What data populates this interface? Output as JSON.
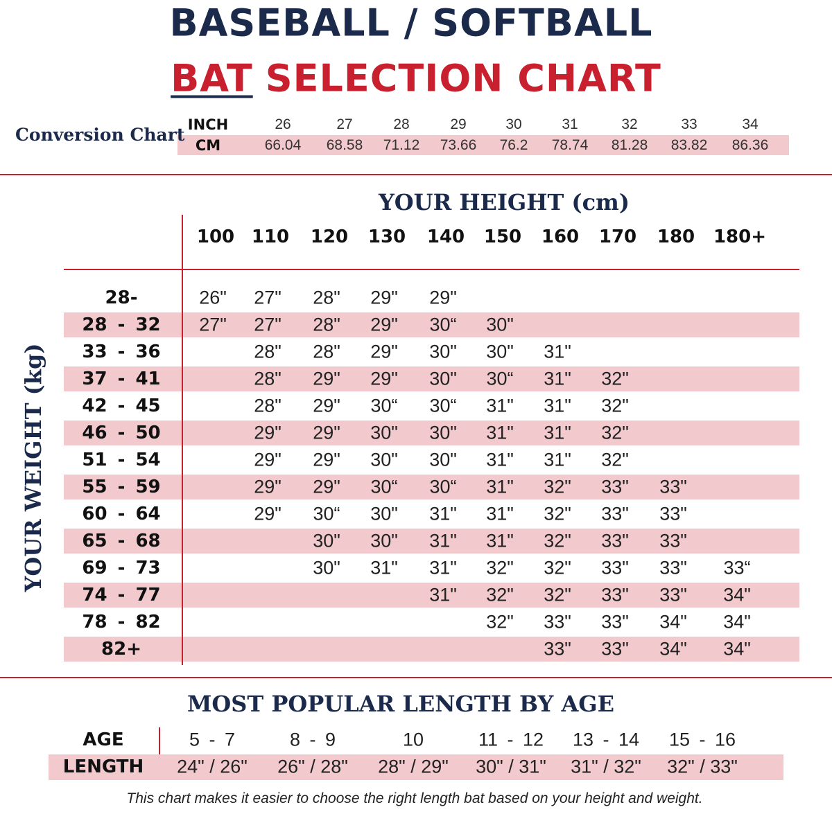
{
  "header": {
    "title_line1": "BASEBALL / SOFTBALL",
    "title_line2_underlined": "BAT",
    "title_line2_rest": "SELECTION CHART"
  },
  "conversion": {
    "title": "Conversion Chart",
    "inch_label": "INCH",
    "cm_label": "CM",
    "inch": [
      26,
      27,
      28,
      29,
      30,
      31,
      32,
      33,
      34
    ],
    "cm": [
      66.04,
      68.58,
      71.12,
      73.66,
      76.2,
      78.74,
      81.28,
      83.82,
      86.36
    ]
  },
  "table": {
    "height_title": "YOUR HEIGHT (cm)",
    "weight_title": "YOUR WEIGHT (kg)",
    "columns": [
      "100",
      "110",
      "120",
      "130",
      "140",
      "150",
      "160",
      "170",
      "180",
      "180+"
    ],
    "rows": [
      {
        "weight": "28-",
        "cells": [
          "26\"",
          "27\"",
          "28\"",
          "29\"",
          "29\"",
          null,
          null,
          null,
          null,
          null
        ]
      },
      {
        "weight": "28 - 32",
        "cells": [
          "27\"",
          "27\"",
          "28\"",
          "29\"",
          "30“",
          "30\"",
          null,
          null,
          null,
          null
        ]
      },
      {
        "weight": "33 - 36",
        "cells": [
          null,
          "28\"",
          "28\"",
          "29\"",
          "30\"",
          "30\"",
          "31\"",
          null,
          null,
          null
        ]
      },
      {
        "weight": "37 - 41",
        "cells": [
          null,
          "28\"",
          "29\"",
          "29\"",
          "30\"",
          "30“",
          "31\"",
          "32\"",
          null,
          null
        ]
      },
      {
        "weight": "42 - 45",
        "cells": [
          null,
          "28\"",
          "29\"",
          "30“",
          "30“",
          "31\"",
          "31\"",
          "32\"",
          null,
          null
        ]
      },
      {
        "weight": "46 - 50",
        "cells": [
          null,
          "29\"",
          "29\"",
          "30\"",
          "30\"",
          "31\"",
          "31\"",
          "32\"",
          null,
          null
        ]
      },
      {
        "weight": "51 - 54",
        "cells": [
          null,
          "29\"",
          "29\"",
          "30\"",
          "30\"",
          "31\"",
          "31\"",
          "32\"",
          null,
          null
        ]
      },
      {
        "weight": "55 - 59",
        "cells": [
          null,
          "29\"",
          "29\"",
          "30“",
          "30“",
          "31\"",
          "32\"",
          "33\"",
          "33\"",
          null
        ]
      },
      {
        "weight": "60 - 64",
        "cells": [
          null,
          "29\"",
          "30“",
          "30\"",
          "31\"",
          "31\"",
          "32\"",
          "33\"",
          "33\"",
          null
        ]
      },
      {
        "weight": "65 - 68",
        "cells": [
          null,
          null,
          "30\"",
          "30\"",
          "31\"",
          "31\"",
          "32\"",
          "33\"",
          "33\"",
          null
        ]
      },
      {
        "weight": "69 - 73",
        "cells": [
          null,
          null,
          "30\"",
          "31\"",
          "31\"",
          "32\"",
          "32\"",
          "33\"",
          "33\"",
          "33“"
        ]
      },
      {
        "weight": "74 - 77",
        "cells": [
          null,
          null,
          null,
          null,
          "31\"",
          "32\"",
          "32\"",
          "33\"",
          "33\"",
          "34\""
        ]
      },
      {
        "weight": "78 - 82",
        "cells": [
          null,
          null,
          null,
          null,
          null,
          "32\"",
          "33\"",
          "33\"",
          "34\"",
          "34\""
        ]
      },
      {
        "weight": "82+",
        "cells": [
          null,
          null,
          null,
          null,
          null,
          null,
          "33\"",
          "33\"",
          "34\"",
          "34\""
        ]
      }
    ]
  },
  "age_table": {
    "title": "MOST POPULAR LENGTH BY AGE",
    "age_label": "AGE",
    "length_label": "LENGTH",
    "ages": [
      "5 - 7",
      "8 - 9",
      "10",
      "11 - 12",
      "13 - 14",
      "15 - 16"
    ],
    "lengths": [
      "24\" / 26\"",
      "26\" / 28\"",
      "28\" / 29\"",
      "30\" / 31\"",
      "31\" / 32\"",
      "32\" / 33\""
    ]
  },
  "footer": "This chart makes it easier to choose the right length bat based on your height and weight."
}
